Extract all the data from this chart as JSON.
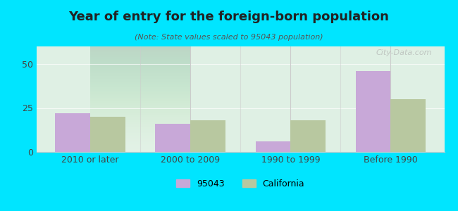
{
  "title": "Year of entry for the foreign-born population",
  "subtitle": "(Note: State values scaled to 95043 population)",
  "categories": [
    "2010 or later",
    "2000 to 2009",
    "1990 to 1999",
    "Before 1990"
  ],
  "values_95043": [
    22,
    16,
    6,
    46
  ],
  "values_california": [
    20,
    18,
    18,
    30
  ],
  "color_95043": "#c8a8d8",
  "color_california": "#b8c8a0",
  "background_outer": "#00e5ff",
  "background_inner_top": "#e8f5e0",
  "background_inner_bottom": "#d8f0e8",
  "ylim": [
    0,
    60
  ],
  "yticks": [
    0,
    25,
    50
  ],
  "bar_width": 0.35,
  "legend_labels": [
    "95043",
    "California"
  ],
  "watermark": "City-Data.com"
}
